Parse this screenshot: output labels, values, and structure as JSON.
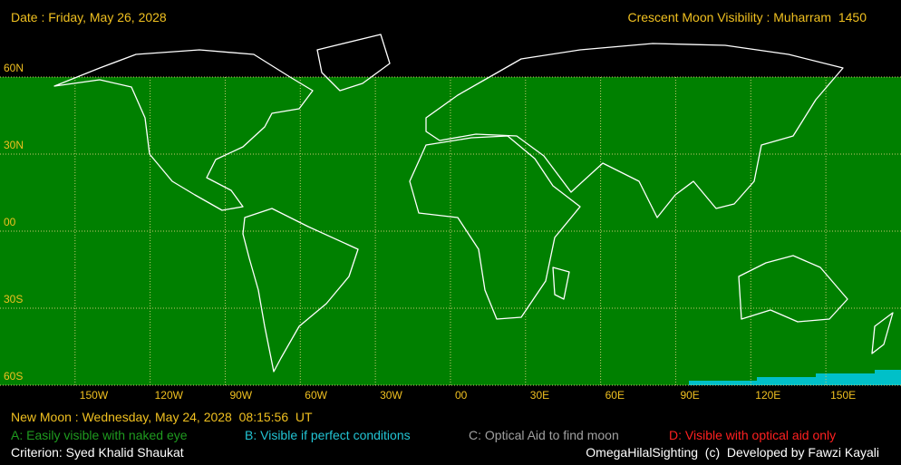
{
  "header": {
    "date": "Date : Friday, May 26, 2028",
    "title": "Crescent Moon Visibility : Muharram  1450"
  },
  "map": {
    "latitude_labels": [
      "60N",
      "30N",
      "00",
      "30S",
      "60S"
    ],
    "longitude_labels": [
      "150W",
      "120W",
      "90W",
      "60W",
      "30W",
      "00",
      "30E",
      "60E",
      "90E",
      "120E",
      "150E"
    ]
  },
  "footer": {
    "new_moon": "New Moon : Wednesday, May 24, 2028  08:15:56  UT",
    "legend": [
      {
        "text": "A: Easily visible with naked eye",
        "color": "#1f9b1f"
      },
      {
        "text": "B: Visible if perfect conditions",
        "color": "#22c4d4"
      },
      {
        "text": "C: Optical Aid to find moon",
        "color": "#a0a0a0"
      },
      {
        "text": "D: Visible with optical aid only",
        "color": "#ff2020"
      }
    ],
    "criterion": "Criterion: Syed Khalid Shaukat",
    "credit": "OmegaHilalSighting  (c)  Developed by Fawzi Kayali"
  }
}
